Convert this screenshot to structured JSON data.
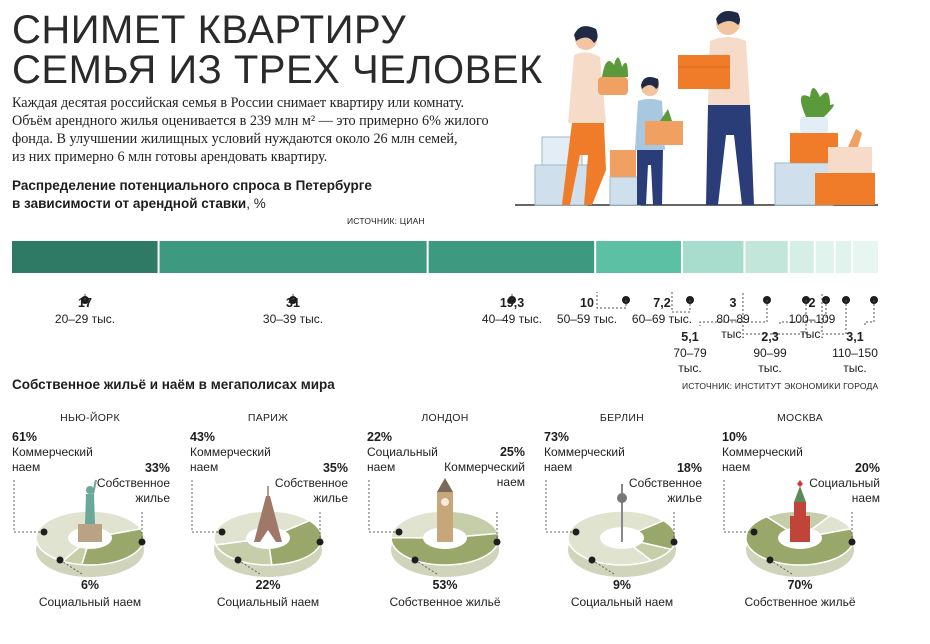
{
  "title": {
    "line1": "СНИМЕТ КВАРТИРУ",
    "line2": "СЕМЬЯ ИЗ ТРЕХ ЧЕЛОВЕК"
  },
  "intro": {
    "line1": "Каждая десятая российская семья в России снимает квартиру или комнату.",
    "line2": "Объём арендного жилья оценивается в 239 млн м² — это примерно 6% жилого",
    "line3": "фонда. В улучшении жилищных условий нуждаются около 26 млн семей,",
    "line4": "из них примерно 6 млн готовы арендовать квартиру."
  },
  "demand": {
    "heading_line1": "Распределение потенциального спроса в Петербурге",
    "heading_line2_bold": "в зависимости от арендной ставки",
    "heading_line2_unit": ", %",
    "source": "ИСТОЧНИК: ЦИАН",
    "source_bottom": "ИСТОЧНИК: ИНСТИТУТ ЭКОНОМИКИ ГОРОДА",
    "colors": [
      "#2e7a64",
      "#3d9a80",
      "#3d9a80",
      "#5cc0a4",
      "#a8dccc",
      "#c2e6d9",
      "#d6efe6",
      "#e0f3ec",
      "#e0f3ec",
      "#e7f6f0"
    ]
  },
  "chart_data": {
    "type": "bar",
    "title": "Распределение потенциального спроса в Петербурге в зависимости от арендной ставки, %",
    "categories": [
      "20–29 тыс.",
      "30–39 тыс.",
      "40–49 тыс.",
      "50–59 тыс.",
      "60–69 тыс.",
      "70–79 тыс.",
      "80–89 тыс.",
      "90–99 тыс.",
      "100–109 тыс.",
      "110–150 тыс."
    ],
    "values": [
      17,
      31,
      19.3,
      10,
      7.2,
      5.1,
      3,
      2.3,
      2,
      3.1
    ],
    "value_labels": [
      "17",
      "31",
      "19,3",
      "10",
      "7,2",
      "5,1",
      "3",
      "2,3",
      "2",
      "3,1"
    ],
    "stacked_total": 100
  },
  "megacities": {
    "heading": "Собственное жильё и наём в мегаполисах мира",
    "colors": {
      "own": "#9aa76b",
      "commercial": "#dfe3cf",
      "social": "#c6cda9",
      "top_commercial": "#e8ebdc"
    },
    "cities": [
      {
        "name": "НЬЮ-ЙОРК",
        "icon": "statue-of-liberty-icon",
        "shares": {
          "commercial": 61,
          "own": 33,
          "social": 6
        },
        "labels": [
          {
            "pct": "61%",
            "lines": [
              "Коммерческий",
              "наем"
            ]
          },
          {
            "pct": "33%",
            "lines": [
              "Собственное",
              "жилье"
            ]
          },
          {
            "pct": "6%",
            "lines": [
              "Социальный наем"
            ]
          }
        ]
      },
      {
        "name": "ПАРИЖ",
        "icon": "eiffel-tower-icon",
        "shares": {
          "commercial": 43,
          "own": 35,
          "social": 22
        },
        "labels": [
          {
            "pct": "43%",
            "lines": [
              "Коммерческий",
              "наем"
            ]
          },
          {
            "pct": "35%",
            "lines": [
              "Собственное",
              "жилье"
            ]
          },
          {
            "pct": "22%",
            "lines": [
              "Социальный наем"
            ]
          }
        ]
      },
      {
        "name": "ЛОНДОН",
        "icon": "big-ben-icon",
        "shares": {
          "social": 22,
          "commercial": 25,
          "own": 53
        },
        "labels": [
          {
            "pct": "22%",
            "lines": [
              "Социальный",
              "наем"
            ]
          },
          {
            "pct": "25%",
            "lines": [
              "Коммерческий",
              "наем"
            ]
          },
          {
            "pct": "53%",
            "lines": [
              "Собственное жильё"
            ]
          }
        ]
      },
      {
        "name": "БЕРЛИН",
        "icon": "berlin-tv-tower-icon",
        "shares": {
          "commercial": 73,
          "own": 18,
          "social": 9
        },
        "labels": [
          {
            "pct": "73%",
            "lines": [
              "Коммерческий",
              "наем"
            ]
          },
          {
            "pct": "18%",
            "lines": [
              "Собственное",
              "жилье"
            ]
          },
          {
            "pct": "9%",
            "lines": [
              "Социальный наем"
            ]
          }
        ]
      },
      {
        "name": "МОСКВА",
        "icon": "kremlin-tower-icon",
        "shares": {
          "commercial": 10,
          "social": 20,
          "own": 70
        },
        "labels": [
          {
            "pct": "10%",
            "lines": [
              "Коммерческий",
              "наем"
            ]
          },
          {
            "pct": "20%",
            "lines": [
              "Социальный",
              "наем"
            ]
          },
          {
            "pct": "70%",
            "lines": [
              "Собственное жильё"
            ]
          }
        ]
      }
    ]
  }
}
